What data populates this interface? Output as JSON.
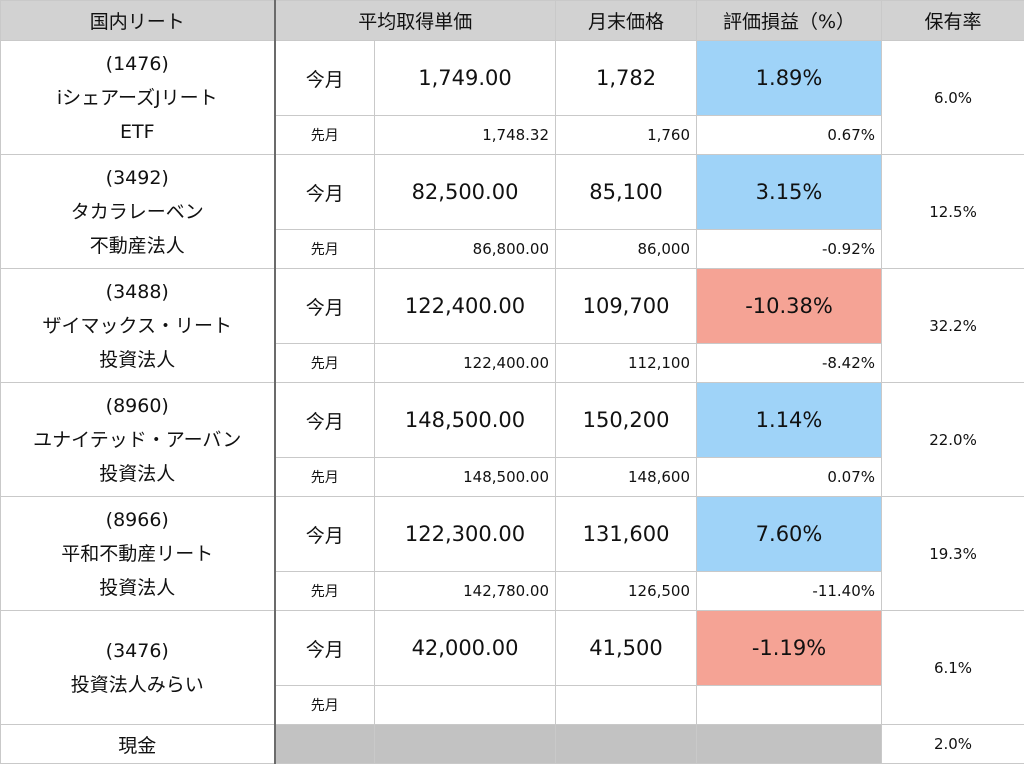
{
  "headers": {
    "name": "国内リート",
    "avg_cost": "平均取得単価",
    "month_end_price": "月末価格",
    "unrealized_pl": "評価損益（%）",
    "holding_ratio": "保有率"
  },
  "labels": {
    "this_month": "今月",
    "last_month": "先月"
  },
  "rows": [
    {
      "code": "(1476)",
      "name_lines": [
        "iシェアーズJリート",
        "ETF"
      ],
      "now": {
        "avg": "1,749.00",
        "price": "1,782",
        "pl": "1.89%",
        "pl_sign": "pos"
      },
      "prev": {
        "avg": "1,748.32",
        "price": "1,760",
        "pl": "0.67%"
      },
      "ratio": "6.0%"
    },
    {
      "code": "(3492)",
      "name_lines": [
        "タカラレーベン",
        "不動産法人"
      ],
      "now": {
        "avg": "82,500.00",
        "price": "85,100",
        "pl": "3.15%",
        "pl_sign": "pos"
      },
      "prev": {
        "avg": "86,800.00",
        "price": "86,000",
        "pl": "-0.92%"
      },
      "ratio": "12.5%"
    },
    {
      "code": "(3488)",
      "name_lines": [
        "ザイマックス・リート",
        "投資法人"
      ],
      "now": {
        "avg": "122,400.00",
        "price": "109,700",
        "pl": "-10.38%",
        "pl_sign": "neg"
      },
      "prev": {
        "avg": "122,400.00",
        "price": "112,100",
        "pl": "-8.42%"
      },
      "ratio": "32.2%"
    },
    {
      "code": "(8960)",
      "name_lines": [
        "ユナイテッド・アーバン",
        "投資法人"
      ],
      "now": {
        "avg": "148,500.00",
        "price": "150,200",
        "pl": "1.14%",
        "pl_sign": "pos"
      },
      "prev": {
        "avg": "148,500.00",
        "price": "148,600",
        "pl": "0.07%"
      },
      "ratio": "22.0%"
    },
    {
      "code": "(8966)",
      "name_lines": [
        "平和不動産リート",
        "投資法人"
      ],
      "now": {
        "avg": "122,300.00",
        "price": "131,600",
        "pl": "7.60%",
        "pl_sign": "pos"
      },
      "prev": {
        "avg": "142,780.00",
        "price": "126,500",
        "pl": "-11.40%"
      },
      "ratio": "19.3%"
    },
    {
      "code": "(3476)",
      "name_lines": [
        "投資法人みらい"
      ],
      "now": {
        "avg": "42,000.00",
        "price": "41,500",
        "pl": "-1.19%",
        "pl_sign": "neg"
      },
      "prev": {
        "avg": "",
        "price": "",
        "pl": ""
      },
      "ratio": "6.1%"
    }
  ],
  "cash": {
    "label": "現金",
    "ratio": "2.0%"
  },
  "colors": {
    "positive": "#9fd3f8",
    "negative": "#f5a395",
    "header": "#d2d2d2",
    "cash_fill": "#c2c2c2"
  }
}
